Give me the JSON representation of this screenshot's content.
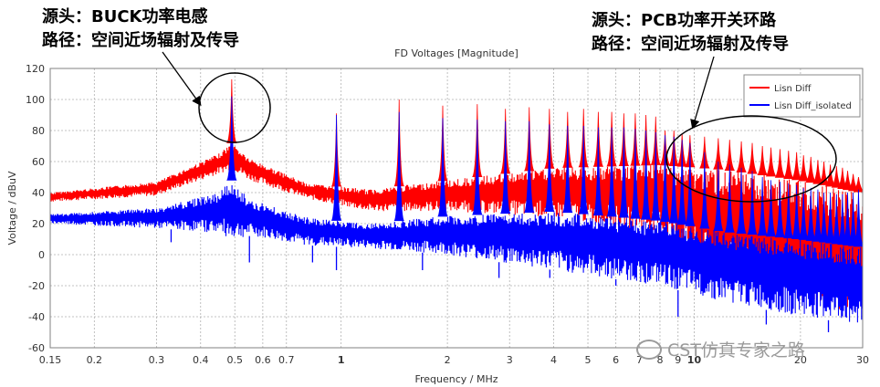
{
  "annotations": {
    "left": {
      "line1": "源头：BUCK功率电感",
      "line2": "路径：空间近场辐射及传导"
    },
    "right": {
      "line1": "源头：PCB功率开关环路",
      "line2": "路径：空间近场辐射及传导"
    }
  },
  "watermark": "CST仿真专家之路",
  "colors": {
    "series_red": "#ff0000",
    "series_blue": "#0000ff",
    "grid": "#b0b0b0",
    "plot_border": "#808080"
  },
  "chart_data": {
    "type": "line",
    "title": "FD Voltages [Magnitude]",
    "xlabel": "Frequency / MHz",
    "ylabel": "Voltage / dBuV",
    "xscale": "log",
    "xlim": [
      0.15,
      30
    ],
    "ylim": [
      -60,
      120
    ],
    "grid": true,
    "legend_position": "top-right",
    "x_ticks": [
      {
        "v": 0.15,
        "label": "0.15"
      },
      {
        "v": 0.2,
        "label": "0.2"
      },
      {
        "v": 0.3,
        "label": "0.3"
      },
      {
        "v": 0.4,
        "label": "0.4"
      },
      {
        "v": 0.5,
        "label": "0.5"
      },
      {
        "v": 0.6,
        "label": "0.6"
      },
      {
        "v": 0.7,
        "label": "0.7"
      },
      {
        "v": 1,
        "label": "1"
      },
      {
        "v": 2,
        "label": "2"
      },
      {
        "v": 3,
        "label": "3"
      },
      {
        "v": 4,
        "label": "4"
      },
      {
        "v": 5,
        "label": "5"
      },
      {
        "v": 6,
        "label": "6"
      },
      {
        "v": 7,
        "label": "7"
      },
      {
        "v": 8,
        "label": "8"
      },
      {
        "v": 9,
        "label": "9"
      },
      {
        "v": 10,
        "label": "10"
      },
      {
        "v": 20,
        "label": "20"
      },
      {
        "v": 30,
        "label": "30"
      }
    ],
    "y_ticks": [
      -60,
      -40,
      -20,
      0,
      20,
      40,
      60,
      80,
      100,
      120
    ],
    "series": [
      {
        "name": "Lisn Diff",
        "color": "#ff0000",
        "peaks_x": [
          0.49,
          0.97,
          1.46,
          1.94,
          2.43,
          2.92,
          3.41,
          3.89,
          4.38,
          4.86,
          5.35,
          5.84,
          6.32,
          6.81,
          7.3,
          7.78,
          8.27,
          8.76,
          9.24,
          9.73,
          10.7,
          11.7,
          12.6,
          13.6,
          14.6,
          15.6,
          16.5,
          17.5,
          18.5,
          19.5,
          20.4,
          21.4,
          22.4,
          23.3,
          24.3,
          25.3,
          26.3,
          27.2,
          28.2,
          29.2
        ],
        "peaks_y": [
          113,
          91,
          100,
          96,
          97,
          94,
          95,
          94,
          92,
          94,
          92,
          92,
          91,
          91,
          90,
          89,
          80,
          80,
          78,
          77,
          76,
          75,
          74,
          73,
          72,
          70,
          69,
          68,
          67,
          66,
          64,
          63,
          61,
          60,
          58,
          57,
          56,
          54,
          52,
          50
        ],
        "band_upper": [
          [
            0.15,
            40
          ],
          [
            0.3,
            47
          ],
          [
            0.45,
            65
          ],
          [
            0.49,
            72
          ],
          [
            0.55,
            62
          ],
          [
            0.8,
            46
          ],
          [
            1.2,
            42
          ],
          [
            2,
            48
          ],
          [
            4,
            56
          ],
          [
            8,
            58
          ],
          [
            12,
            55
          ],
          [
            20,
            48
          ],
          [
            30,
            40
          ]
        ],
        "band_lower": [
          [
            0.15,
            34
          ],
          [
            0.3,
            38
          ],
          [
            0.45,
            52
          ],
          [
            0.49,
            55
          ],
          [
            0.55,
            48
          ],
          [
            0.8,
            36
          ],
          [
            1.2,
            28
          ],
          [
            2,
            28
          ],
          [
            4,
            24
          ],
          [
            8,
            14
          ],
          [
            12,
            -15
          ],
          [
            20,
            -30
          ],
          [
            30,
            -38
          ]
        ]
      },
      {
        "name": "Lisn Diff_isolated",
        "color": "#0000ff",
        "peaks_x": [
          0.49,
          0.97,
          1.46,
          1.94,
          2.43,
          2.92,
          3.41,
          3.89,
          4.38,
          4.86,
          5.35,
          5.84,
          6.32,
          6.81,
          7.3,
          7.78,
          8.27,
          8.76,
          9.24,
          9.73,
          10.7,
          11.7,
          12.6,
          13.6,
          14.6,
          15.6,
          16.5,
          17.5,
          18.5,
          19.5,
          20.4,
          21.4,
          22.4,
          23.3,
          24.3,
          25.3,
          26.3,
          27.2,
          28.2,
          29.2
        ],
        "peaks_y": [
          102,
          90,
          92,
          88,
          87,
          86,
          86,
          84,
          83,
          83,
          82,
          82,
          82,
          81,
          80,
          79,
          77,
          76,
          74,
          72,
          66,
          60,
          58,
          56,
          54,
          50,
          48,
          47,
          46,
          45,
          43,
          43,
          42,
          40,
          40,
          39,
          39,
          40,
          40,
          42
        ],
        "band_upper": [
          [
            0.15,
            26
          ],
          [
            0.3,
            30
          ],
          [
            0.45,
            40
          ],
          [
            0.49,
            48
          ],
          [
            0.55,
            36
          ],
          [
            0.8,
            24
          ],
          [
            1.2,
            20
          ],
          [
            2,
            25
          ],
          [
            4,
            28
          ],
          [
            8,
            22
          ],
          [
            12,
            15
          ],
          [
            20,
            10
          ],
          [
            30,
            5
          ]
        ],
        "band_lower": [
          [
            0.15,
            20
          ],
          [
            0.3,
            17
          ],
          [
            0.45,
            14
          ],
          [
            0.49,
            10
          ],
          [
            0.55,
            12
          ],
          [
            0.8,
            6
          ],
          [
            1.2,
            4
          ],
          [
            2,
            0
          ],
          [
            4,
            -10
          ],
          [
            8,
            -20
          ],
          [
            12,
            -30
          ],
          [
            20,
            -40
          ],
          [
            30,
            -45
          ]
        ],
        "dips": [
          [
            0.33,
            8
          ],
          [
            0.55,
            -5
          ],
          [
            0.83,
            -5
          ],
          [
            0.97,
            -10
          ],
          [
            1.7,
            -10
          ],
          [
            2.8,
            -15
          ],
          [
            3.9,
            -15
          ],
          [
            6.0,
            -20
          ],
          [
            9.0,
            -40
          ],
          [
            16,
            -45
          ],
          [
            24,
            -50
          ]
        ]
      }
    ]
  }
}
